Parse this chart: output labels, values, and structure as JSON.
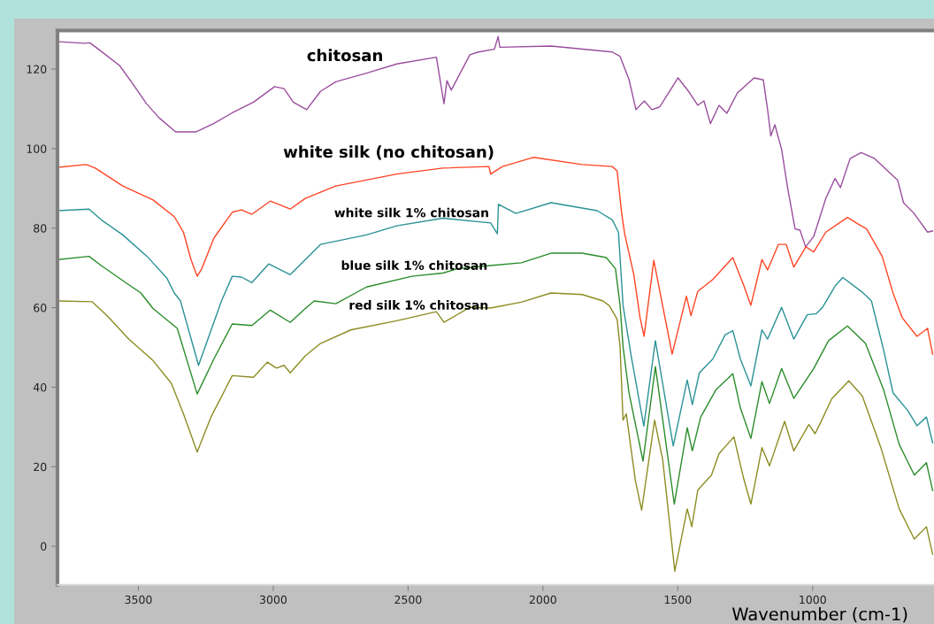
{
  "chart_data": {
    "type": "line",
    "xlabel": "Wavenumber (cm-1)",
    "xlim": [
      3800,
      550
    ],
    "ylim": [
      -9.7,
      129.7
    ],
    "xticks": [
      3500,
      3000,
      2500,
      2000,
      1500,
      1000
    ],
    "yticks": [
      0,
      20,
      40,
      60,
      80,
      100,
      120
    ],
    "grid": false,
    "series": [
      {
        "name": "chitosan",
        "color": "#9a4d9e",
        "x": [
          3795,
          3700,
          3680,
          3650,
          3570,
          3525,
          3470,
          3424,
          3362,
          3287,
          3221,
          3152,
          3073,
          2995,
          2960,
          2926,
          2876,
          2825,
          2768,
          2654,
          2542,
          2395,
          2367,
          2356,
          2340,
          2271,
          2239,
          2180,
          2166,
          2160,
          1970,
          1743,
          1714,
          1681,
          1655,
          1624,
          1596,
          1567,
          1499,
          1460,
          1426,
          1403,
          1379,
          1347,
          1318,
          1279,
          1217,
          1183,
          1167,
          1155,
          1140,
          1115,
          1092,
          1065,
          1047,
          1026,
          996,
          951,
          917,
          897,
          861,
          820,
          770,
          685,
          663,
          624,
          574,
          555
        ],
        "values": [
          126.9,
          126.5,
          126.6,
          125.1,
          120.9,
          116.7,
          111.3,
          107.8,
          104.2,
          104.2,
          106.3,
          109,
          111.7,
          115.6,
          115.1,
          111.7,
          109.8,
          114.4,
          116.8,
          119,
          121.3,
          123,
          111.3,
          117.1,
          114.7,
          123.6,
          124.3,
          125,
          128.2,
          125.5,
          125.8,
          124.3,
          123.2,
          117.4,
          109.8,
          112,
          109.8,
          110.5,
          117.8,
          114.4,
          110.9,
          112,
          106.3,
          110.9,
          108.9,
          114,
          117.8,
          117.3,
          109.8,
          103.2,
          106,
          99.8,
          89.8,
          79.8,
          79.5,
          75.3,
          77.9,
          87.5,
          92.5,
          90.2,
          97.5,
          99,
          97.5,
          92.1,
          86.4,
          83.7,
          79,
          79.3
        ]
      },
      {
        "name": "white silk (no chitosan)",
        "color": "#ff4424",
        "x": [
          3795,
          3694,
          3660,
          3558,
          3446,
          3367,
          3333,
          3305,
          3282,
          3265,
          3220,
          3152,
          3118,
          3079,
          3011,
          2937,
          2881,
          2768,
          2542,
          2371,
          2200,
          2194,
          2150,
          2036,
          1855,
          1743,
          1725,
          1708,
          1697,
          1663,
          1640,
          1625,
          1589,
          1521,
          1468,
          1451,
          1426,
          1370,
          1296,
          1256,
          1229,
          1188,
          1167,
          1127,
          1098,
          1070,
          1025,
          996,
          951,
          871,
          838,
          800,
          742,
          702,
          668,
          613,
          574,
          555
        ],
        "values": [
          95.3,
          96,
          95.1,
          90.6,
          87.1,
          82.9,
          79,
          72.1,
          67.9,
          69.8,
          77.5,
          84,
          84.6,
          83.5,
          86.8,
          84.8,
          87.5,
          90.6,
          93.6,
          95.1,
          95.5,
          93.6,
          95.5,
          97.8,
          96,
          95.5,
          94.4,
          83.7,
          78.6,
          68.3,
          57.5,
          52.8,
          71.9,
          48.3,
          62.9,
          58,
          64.1,
          67.1,
          72.6,
          65.7,
          60.6,
          72.1,
          69.5,
          75.9,
          75.9,
          70.2,
          75.3,
          74,
          79,
          82.7,
          81.3,
          79.8,
          72.9,
          63.7,
          57.5,
          52.8,
          54.8,
          48.3
        ]
      },
      {
        "name": "white silk 1% chitosan",
        "color": "#2a9296",
        "x": [
          3795,
          3683,
          3638,
          3558,
          3468,
          3395,
          3367,
          3344,
          3277,
          3192,
          3152,
          3118,
          3079,
          3017,
          2937,
          2881,
          2825,
          2654,
          2542,
          2371,
          2194,
          2169,
          2165,
          2100,
          1970,
          1799,
          1743,
          1720,
          1703,
          1673,
          1626,
          1583,
          1517,
          1465,
          1446,
          1420,
          1370,
          1324,
          1296,
          1268,
          1229,
          1188,
          1167,
          1115,
          1070,
          1020,
          986,
          964,
          915,
          888,
          816,
          782,
          737,
          702,
          646,
          613,
          578,
          555
        ],
        "values": [
          84.4,
          84.8,
          82.1,
          78.3,
          72.9,
          67.5,
          63.7,
          61.7,
          45.5,
          61.7,
          67.9,
          67.7,
          66.3,
          71,
          68.3,
          72.1,
          75.9,
          78.3,
          80.6,
          82.5,
          81.3,
          78.6,
          86,
          83.7,
          86.4,
          84.4,
          82.1,
          79,
          60.6,
          47.9,
          30.2,
          51.7,
          25.2,
          41.8,
          35.6,
          43.6,
          47.1,
          53.2,
          54.2,
          47.1,
          40.3,
          54.4,
          52.1,
          60.1,
          52.1,
          58.2,
          58.5,
          60,
          65.6,
          67.6,
          63.9,
          61.7,
          49.4,
          38.6,
          34,
          30.3,
          32.5,
          26
        ]
      },
      {
        "name": "blue silk 1% chitosan",
        "color": "#2a8c2a",
        "x": [
          3795,
          3683,
          3638,
          3558,
          3491,
          3446,
          3356,
          3282,
          3220,
          3152,
          3079,
          3011,
          2937,
          2881,
          2848,
          2768,
          2654,
          2486,
          2371,
          2317,
          2194,
          2080,
          1970,
          1855,
          1765,
          1731,
          1714,
          1703,
          1681,
          1629,
          1583,
          1513,
          1465,
          1446,
          1415,
          1358,
          1296,
          1268,
          1229,
          1188,
          1160,
          1115,
          1070,
          996,
          941,
          871,
          804,
          737,
          679,
          623,
          578,
          555
        ],
        "values": [
          72.1,
          72.9,
          70.6,
          66.8,
          63.7,
          59.8,
          54.8,
          38.3,
          47.1,
          55.9,
          55.5,
          59.4,
          56.3,
          59.8,
          61.7,
          61,
          65.2,
          67.9,
          68.7,
          69.8,
          70.6,
          71.3,
          73.7,
          73.7,
          72.6,
          69.8,
          60.6,
          50.2,
          38.6,
          21.4,
          45.2,
          10.6,
          29.8,
          24,
          32.5,
          39.4,
          43.4,
          34.8,
          27.1,
          41.4,
          35.9,
          44.7,
          37.2,
          44.7,
          51.7,
          55.4,
          51,
          39.4,
          25.6,
          17.9,
          21,
          14
        ]
      },
      {
        "name": "red silk 1% chitosan",
        "color": "#8c8c22",
        "x": [
          3795,
          3672,
          3615,
          3536,
          3446,
          3378,
          3333,
          3282,
          3231,
          3152,
          3073,
          3022,
          2988,
          2960,
          2937,
          2881,
          2825,
          2713,
          2542,
          2395,
          2367,
          2271,
          2194,
          2080,
          1970,
          1855,
          1777,
          1754,
          1725,
          1714,
          1703,
          1691,
          1657,
          1634,
          1586,
          1556,
          1511,
          1465,
          1448,
          1426,
          1375,
          1347,
          1292,
          1256,
          1229,
          1188,
          1160,
          1104,
          1070,
          1014,
          991,
          974,
          929,
          866,
          816,
          747,
          679,
          623,
          578,
          555
        ],
        "values": [
          61.7,
          61.5,
          57.9,
          52.1,
          46.7,
          41,
          33.3,
          23.7,
          32.5,
          42.9,
          42.5,
          46.3,
          44.8,
          45.5,
          43.6,
          47.9,
          51,
          54.4,
          56.7,
          59,
          56.3,
          60.1,
          59.9,
          61.4,
          63.7,
          63.3,
          61.7,
          60.5,
          57.1,
          50.2,
          31.7,
          33.3,
          16.4,
          9.1,
          31.7,
          21.8,
          -6.3,
          9.4,
          4.9,
          14.1,
          17.9,
          23.3,
          27.5,
          17.1,
          10.6,
          24.8,
          20.2,
          31.4,
          24,
          30.6,
          28.3,
          30.6,
          37.1,
          41.6,
          37.8,
          24.8,
          9.4,
          1.8,
          4.9,
          -2
        ]
      }
    ]
  }
}
